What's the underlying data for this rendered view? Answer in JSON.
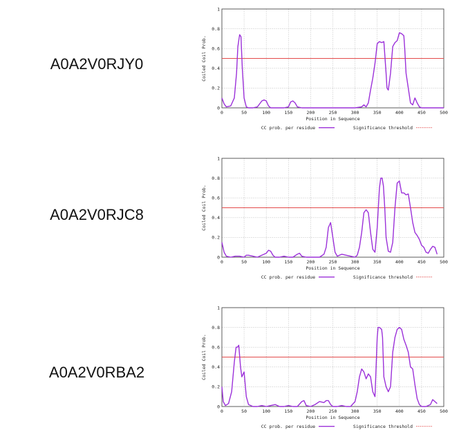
{
  "colors": {
    "series": "#9b30d9",
    "threshold": "#e34a4a",
    "grid": "#b5b5b5",
    "axis": "#333333"
  },
  "chart_data": [
    {
      "type": "line",
      "protein_label": "A0A2V0RJY0",
      "xlabel": "Position in Sequence",
      "ylabel": "Coiled Coil Prob.",
      "xlim": [
        0,
        500
      ],
      "ylim": [
        0,
        1
      ],
      "x_ticks": [
        "0",
        "50",
        "100",
        "150",
        "200",
        "250",
        "300",
        "350",
        "400",
        "450",
        "500"
      ],
      "y_ticks": [
        "0",
        "0.2",
        "0.4",
        "0.6",
        "0.8",
        "1"
      ],
      "grid": true,
      "legend_position": "bottom",
      "threshold": {
        "name": "Significance threshold",
        "value": 0.5
      },
      "series": [
        {
          "name": "CC prob. per residue",
          "x": [
            0,
            5,
            10,
            20,
            28,
            33,
            36,
            40,
            43,
            46,
            50,
            55,
            60,
            70,
            80,
            90,
            95,
            100,
            105,
            110,
            120,
            140,
            150,
            155,
            160,
            165,
            170,
            180,
            200,
            220,
            250,
            280,
            300,
            315,
            320,
            325,
            330,
            335,
            340,
            345,
            350,
            355,
            360,
            365,
            370,
            372,
            375,
            380,
            385,
            390,
            395,
            400,
            405,
            410,
            412,
            415,
            420,
            425,
            430,
            435,
            440,
            445,
            450,
            460,
            480,
            500
          ],
          "y": [
            0.1,
            0.04,
            0.01,
            0.02,
            0.1,
            0.35,
            0.62,
            0.74,
            0.72,
            0.4,
            0.1,
            0.01,
            0.0,
            0.0,
            0.01,
            0.07,
            0.08,
            0.07,
            0.02,
            0.0,
            0.0,
            0.0,
            0.01,
            0.06,
            0.07,
            0.05,
            0.01,
            0.0,
            0.0,
            0.0,
            0.0,
            0.0,
            0.0,
            0.01,
            0.03,
            0.01,
            0.05,
            0.18,
            0.3,
            0.45,
            0.65,
            0.67,
            0.66,
            0.67,
            0.35,
            0.2,
            0.18,
            0.35,
            0.62,
            0.66,
            0.68,
            0.76,
            0.75,
            0.73,
            0.6,
            0.35,
            0.2,
            0.05,
            0.03,
            0.1,
            0.05,
            0.01,
            0.0,
            0.0,
            0.0,
            0.0
          ]
        }
      ]
    },
    {
      "type": "line",
      "protein_label": "A0A2V0RJC8",
      "xlabel": "Position in Sequence",
      "ylabel": "Coiled Coil Prob.",
      "xlim": [
        0,
        500
      ],
      "ylim": [
        0,
        1
      ],
      "x_ticks": [
        "0",
        "50",
        "100",
        "150",
        "200",
        "250",
        "300",
        "350",
        "400",
        "450",
        "500"
      ],
      "y_ticks": [
        "0",
        "0.2",
        "0.4",
        "0.6",
        "0.8",
        "1"
      ],
      "grid": true,
      "legend_position": "bottom",
      "threshold": {
        "name": "Significance threshold",
        "value": 0.5
      },
      "series": [
        {
          "name": "CC prob. per residue",
          "x": [
            0,
            5,
            10,
            20,
            30,
            40,
            50,
            55,
            60,
            70,
            80,
            90,
            100,
            105,
            110,
            115,
            120,
            130,
            140,
            150,
            160,
            170,
            175,
            180,
            190,
            200,
            210,
            220,
            230,
            235,
            240,
            245,
            250,
            255,
            260,
            270,
            280,
            290,
            300,
            305,
            310,
            315,
            320,
            325,
            330,
            335,
            340,
            345,
            350,
            355,
            358,
            361,
            364,
            367,
            370,
            375,
            380,
            385,
            390,
            395,
            400,
            405,
            410,
            415,
            420,
            425,
            430,
            435,
            440,
            445,
            450,
            455,
            460,
            465,
            470,
            475,
            480,
            485
          ],
          "y": [
            0.15,
            0.05,
            0.01,
            0.0,
            0.01,
            0.01,
            0.0,
            0.02,
            0.02,
            0.01,
            0.0,
            0.02,
            0.04,
            0.07,
            0.06,
            0.02,
            0.0,
            0.0,
            0.01,
            0.0,
            0.0,
            0.03,
            0.04,
            0.01,
            0.0,
            0.0,
            0.0,
            0.0,
            0.03,
            0.1,
            0.3,
            0.35,
            0.2,
            0.05,
            0.01,
            0.03,
            0.02,
            0.01,
            0.0,
            0.02,
            0.1,
            0.25,
            0.45,
            0.48,
            0.45,
            0.25,
            0.08,
            0.05,
            0.3,
            0.7,
            0.8,
            0.8,
            0.72,
            0.5,
            0.2,
            0.06,
            0.05,
            0.15,
            0.5,
            0.75,
            0.77,
            0.65,
            0.65,
            0.63,
            0.64,
            0.5,
            0.35,
            0.25,
            0.22,
            0.18,
            0.12,
            0.1,
            0.05,
            0.04,
            0.08,
            0.11,
            0.1,
            0.03
          ]
        }
      ]
    },
    {
      "type": "line",
      "protein_label": "A0A2V0RBA2",
      "xlabel": "Position in Sequence",
      "ylabel": "Coiled Coil Prob.",
      "xlim": [
        0,
        500
      ],
      "ylim": [
        0,
        1
      ],
      "x_ticks": [
        "0",
        "50",
        "100",
        "150",
        "200",
        "250",
        "300",
        "350",
        "400",
        "450",
        "500"
      ],
      "y_ticks": [
        "0",
        "0.2",
        "0.4",
        "0.6",
        "0.8",
        "1"
      ],
      "grid": true,
      "legend_position": "bottom",
      "threshold": {
        "name": "Significance threshold",
        "value": 0.5
      },
      "series": [
        {
          "name": "CC prob. per residue",
          "x": [
            0,
            3,
            8,
            15,
            22,
            28,
            32,
            35,
            38,
            42,
            45,
            50,
            55,
            60,
            70,
            80,
            90,
            100,
            110,
            120,
            130,
            140,
            150,
            160,
            170,
            180,
            185,
            190,
            200,
            210,
            220,
            230,
            235,
            240,
            245,
            250,
            260,
            270,
            280,
            290,
            300,
            305,
            310,
            315,
            320,
            325,
            330,
            335,
            340,
            345,
            350,
            352,
            355,
            360,
            362,
            365,
            370,
            375,
            380,
            385,
            390,
            395,
            400,
            405,
            410,
            415,
            420,
            425,
            430,
            435,
            440,
            445,
            450,
            460,
            470,
            475,
            480,
            485
          ],
          "y": [
            0.2,
            0.05,
            0.01,
            0.03,
            0.15,
            0.45,
            0.6,
            0.6,
            0.62,
            0.4,
            0.3,
            0.35,
            0.1,
            0.02,
            0.0,
            0.0,
            0.01,
            0.0,
            0.01,
            0.02,
            0.0,
            0.0,
            0.01,
            0.0,
            0.0,
            0.05,
            0.06,
            0.01,
            0.0,
            0.02,
            0.05,
            0.04,
            0.06,
            0.06,
            0.02,
            0.0,
            0.0,
            0.01,
            0.0,
            0.0,
            0.05,
            0.15,
            0.3,
            0.38,
            0.35,
            0.28,
            0.33,
            0.3,
            0.15,
            0.1,
            0.7,
            0.8,
            0.8,
            0.78,
            0.7,
            0.3,
            0.2,
            0.15,
            0.2,
            0.55,
            0.7,
            0.78,
            0.8,
            0.78,
            0.68,
            0.62,
            0.55,
            0.4,
            0.38,
            0.22,
            0.08,
            0.02,
            0.0,
            0.0,
            0.02,
            0.07,
            0.05,
            0.03
          ]
        }
      ]
    }
  ]
}
